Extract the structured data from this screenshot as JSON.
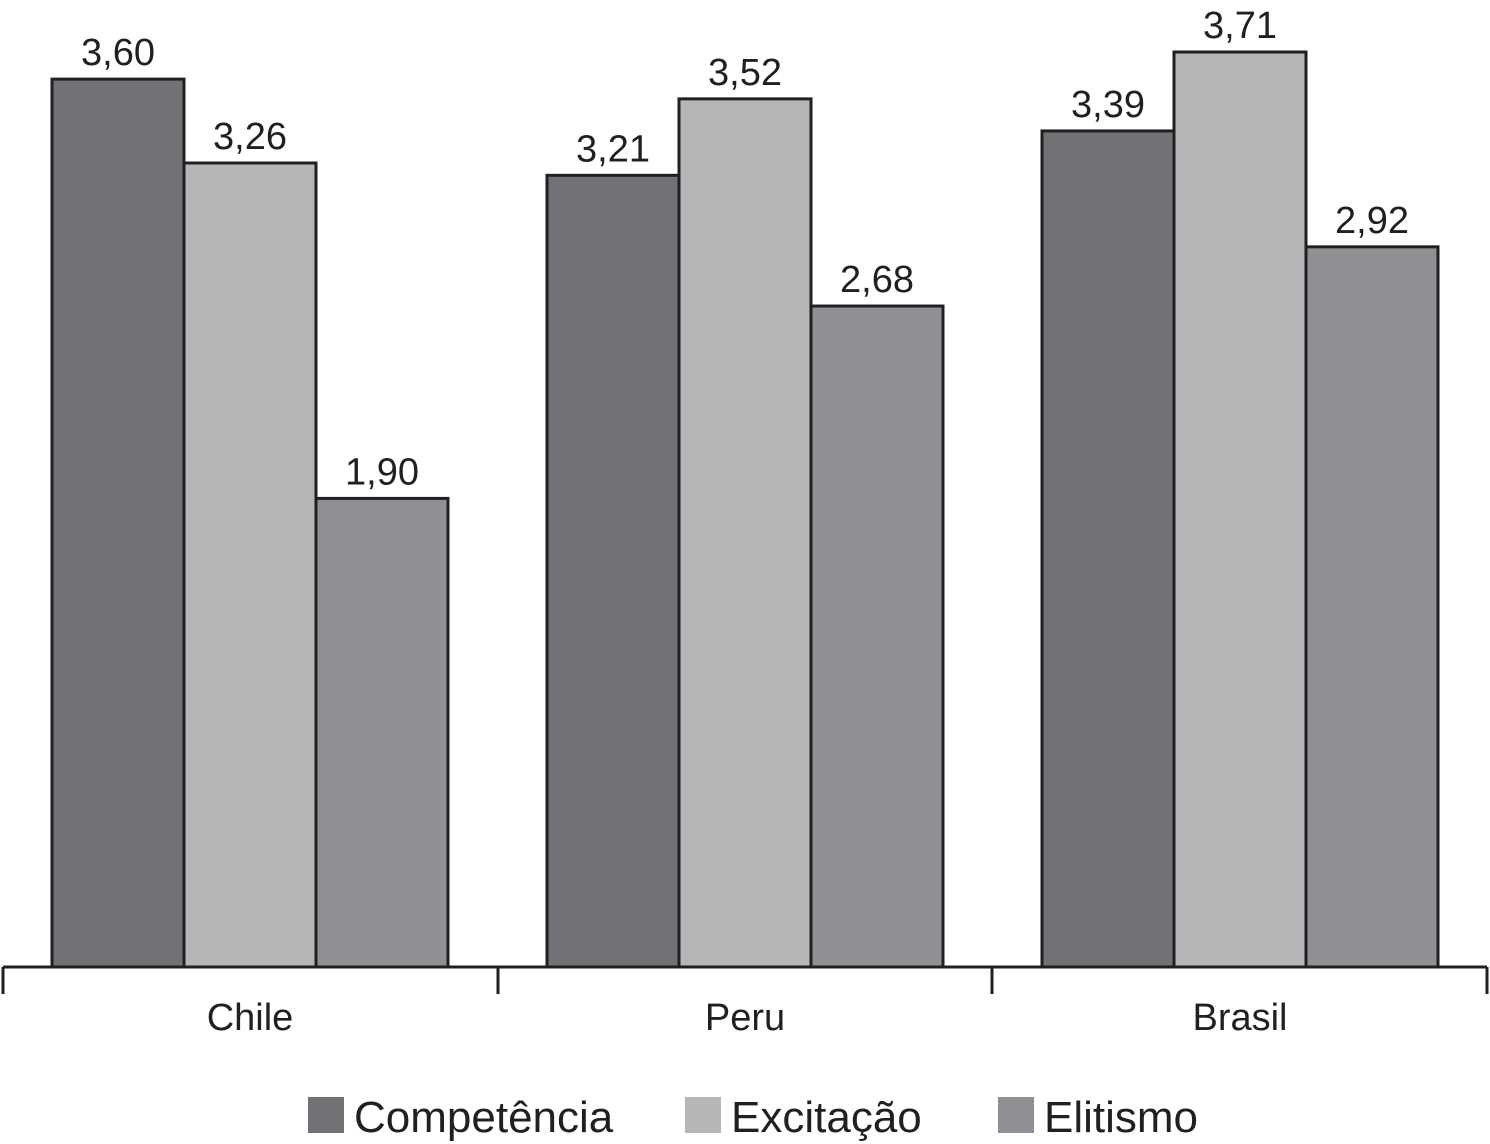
{
  "chart_data": {
    "type": "bar",
    "categories": [
      "Chile",
      "Peru",
      "Brasil"
    ],
    "series": [
      {
        "name": "Competência",
        "values": [
          3.6,
          3.21,
          3.39
        ],
        "labels": [
          "3,60",
          "3,21",
          "3,39"
        ],
        "color": "#717276"
      },
      {
        "name": "Excitação",
        "values": [
          3.26,
          3.52,
          3.71
        ],
        "labels": [
          "3,26",
          "3,52",
          "3,71"
        ],
        "color": "#b5b6b8"
      },
      {
        "name": "Elitismo",
        "values": [
          1.9,
          2.68,
          2.92
        ],
        "labels": [
          "1,90",
          "2,68",
          "2,92"
        ],
        "color": "#8f9094"
      }
    ],
    "ylim": [
      0,
      3.71
    ],
    "grid": false,
    "legend_position": "bottom"
  }
}
